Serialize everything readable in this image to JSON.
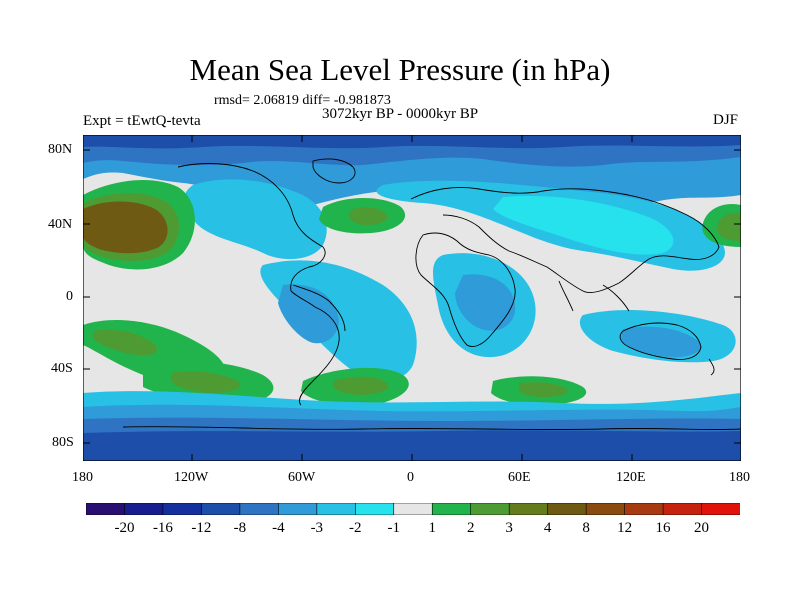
{
  "title": "Mean Sea Level Pressure (in hPa)",
  "stats": "rmsd= 2.06819 diff= -0.981873",
  "period": "3072kyr BP - 0000kyr BP",
  "experiment": "Expt = tEwtQ-tevta",
  "season": "DJF",
  "lat_labels": [
    "80N",
    "40N",
    "0",
    "40S",
    "80S"
  ],
  "lon_labels": [
    "180",
    "120W",
    "60W",
    "0",
    "60E",
    "120E",
    "180"
  ],
  "colorbar": {
    "colors": [
      "#2a0f73",
      "#171c8f",
      "#14309e",
      "#1d4eaa",
      "#2f74c2",
      "#2f9bd8",
      "#28c1e5",
      "#25e2ec",
      "#e6e6e6",
      "#21b44c",
      "#4e9b33",
      "#647c1c",
      "#6e5a12",
      "#8a4b10",
      "#a83a12",
      "#c5220f",
      "#e0120a"
    ],
    "labels": [
      "-20",
      "-16",
      "-12",
      "-8",
      "-4",
      "-3",
      "-2",
      "-1",
      "1",
      "2",
      "3",
      "4",
      "8",
      "12",
      "16",
      "20"
    ]
  },
  "field_colors": {
    "deep_blue": "#1d4eaa",
    "mid_blue": "#2f74c2",
    "blue": "#2f9bd8",
    "light_blue": "#28c1e5",
    "cyan": "#25e2ec",
    "neutral": "#e6e6e6",
    "green": "#21b44c",
    "olive": "#4e9b33",
    "brown": "#6e5a12"
  }
}
